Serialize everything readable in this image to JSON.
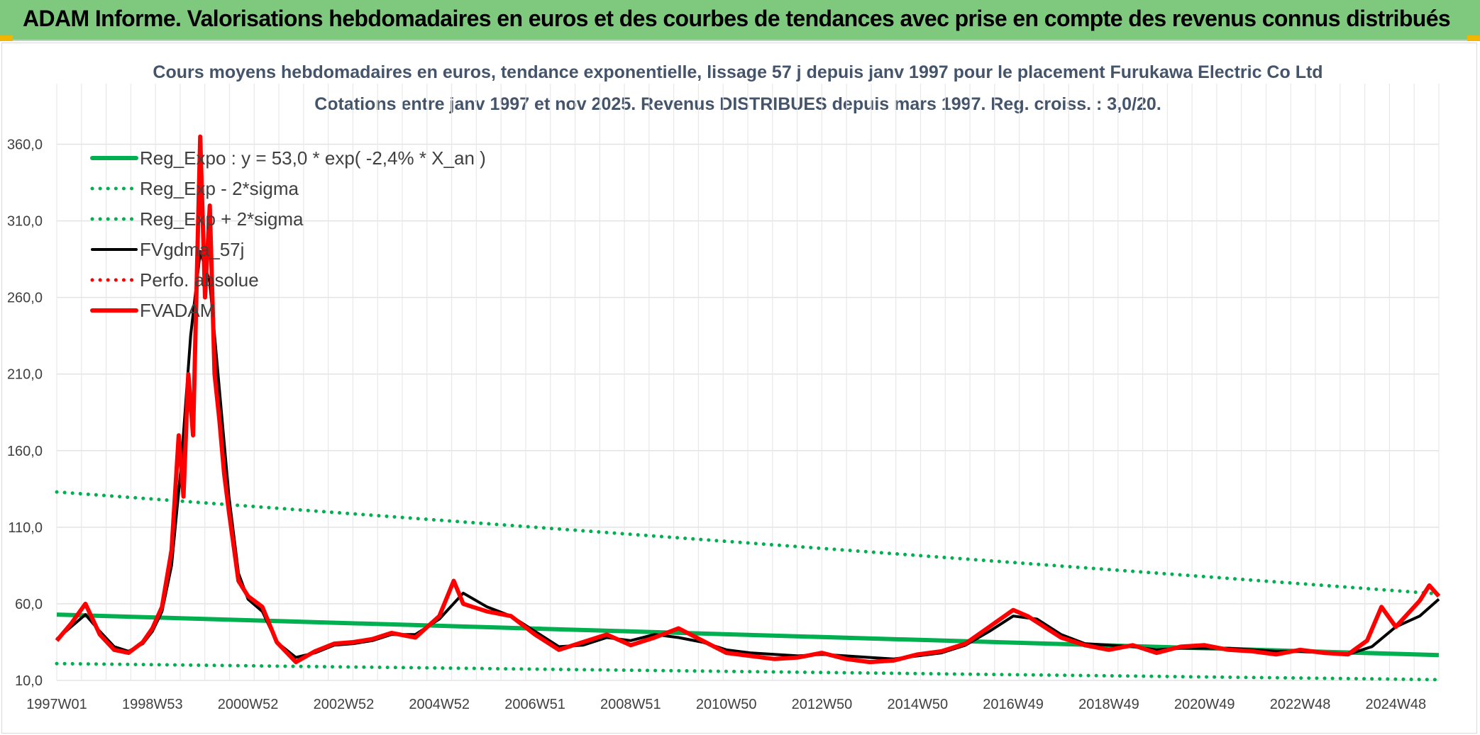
{
  "banner": {
    "title": "ADAM Informe. Valorisations hebdomadaires en euros et des courbes de tendances avec prise en compte des revenus connus distribués",
    "color": "#7ec97e"
  },
  "chart_data": {
    "type": "line",
    "title_line1": "Cours moyens hebdomadaires en euros, tendance exponentielle, lissage 57 j depuis janv 1997 pour le placement Furukawa Electric Co Ltd",
    "title_line2": "Cotations entre janv 1997 et nov 2025. Revenus DISTRIBUES depuis mars 1997. Reg. croiss. : 3,0/20.",
    "x_labels": [
      "1997W01",
      "1998W53",
      "2000W52",
      "2002W52",
      "2004W52",
      "2006W51",
      "2008W51",
      "2010W50",
      "2012W50",
      "2014W50",
      "2016W49",
      "2018W49",
      "2020W49",
      "2022W48",
      "2024W48"
    ],
    "x_range": [
      1997.0,
      2025.9
    ],
    "y_ticks": [
      "10,0",
      "60,0",
      "110,0",
      "160,0",
      "210,0",
      "260,0",
      "310,0",
      "360,0"
    ],
    "ylim": [
      10,
      360
    ],
    "grid": true,
    "legend_position": "top-left (inside plot)",
    "series": [
      {
        "name": "Reg_Expo : y = 53,0 * exp( -2,4% *  X_an )",
        "color": "#00b050",
        "style": "solid-thick",
        "x": [
          1997.0,
          2025.9
        ],
        "values": [
          53.0,
          26.5
        ]
      },
      {
        "name": "Reg_Exp - 2*sigma",
        "color": "#00b050",
        "style": "dotted",
        "x": [
          1997.0,
          2025.9
        ],
        "values": [
          21.0,
          10.5
        ]
      },
      {
        "name": "Reg_Exp + 2*sigma",
        "color": "#00b050",
        "style": "dotted",
        "x": [
          1997.0,
          2025.9
        ],
        "values": [
          133.0,
          66.5
        ]
      },
      {
        "name": "FVgdma_57j",
        "color": "#000000",
        "style": "solid",
        "x": [
          1997.0,
          1997.3,
          1997.6,
          1997.9,
          1998.2,
          1998.5,
          1998.8,
          1999.0,
          1999.2,
          1999.4,
          1999.6,
          1999.8,
          2000.0,
          2000.2,
          2000.4,
          2000.6,
          2000.8,
          2001.0,
          2001.3,
          2001.6,
          2002.0,
          2002.4,
          2002.8,
          2003.2,
          2003.6,
          2004.0,
          2004.5,
          2005.0,
          2005.5,
          2006.0,
          2006.5,
          2007.0,
          2007.5,
          2008.0,
          2008.5,
          2009.0,
          2009.5,
          2010.0,
          2010.5,
          2011.0,
          2011.5,
          2012.0,
          2012.5,
          2013.0,
          2013.5,
          2014.0,
          2014.5,
          2015.0,
          2015.5,
          2016.0,
          2016.5,
          2017.0,
          2017.5,
          2018.0,
          2018.5,
          2019.0,
          2019.5,
          2020.0,
          2020.5,
          2021.0,
          2021.5,
          2022.0,
          2022.5,
          2023.0,
          2023.5,
          2024.0,
          2024.5,
          2025.0,
          2025.5,
          2025.9
        ],
        "values": [
          37,
          45,
          53,
          42,
          32,
          29,
          34,
          42,
          55,
          85,
          150,
          235,
          290,
          270,
          200,
          130,
          80,
          63,
          55,
          35,
          25,
          28,
          33,
          34,
          36,
          40,
          40,
          50,
          67,
          58,
          52,
          42,
          32,
          33,
          38,
          36,
          40,
          38,
          35,
          30,
          28,
          27,
          26,
          27,
          26,
          25,
          24,
          26,
          28,
          33,
          42,
          52,
          50,
          40,
          34,
          33,
          32,
          30,
          31,
          31,
          31,
          30,
          29,
          29,
          28,
          27,
          32,
          45,
          52,
          63
        ]
      },
      {
        "name": "Perfo. absolue",
        "color": "#ff0000",
        "style": "dotted",
        "x": [],
        "values": []
      },
      {
        "name": "FVADAM",
        "color": "#ff0000",
        "style": "solid-thick",
        "x": [
          1997.0,
          1997.3,
          1997.6,
          1997.9,
          1998.2,
          1998.5,
          1998.8,
          1999.0,
          1999.2,
          1999.4,
          1999.55,
          1999.65,
          1999.75,
          1999.85,
          1999.95,
          2000.0,
          2000.1,
          2000.2,
          2000.3,
          2000.4,
          2000.5,
          2000.6,
          2000.8,
          2001.0,
          2001.3,
          2001.6,
          2002.0,
          2002.4,
          2002.8,
          2003.2,
          2003.6,
          2004.0,
          2004.5,
          2005.0,
          2005.3,
          2005.5,
          2005.7,
          2006.0,
          2006.5,
          2007.0,
          2007.5,
          2008.0,
          2008.5,
          2009.0,
          2009.5,
          2010.0,
          2010.5,
          2011.0,
          2011.5,
          2012.0,
          2012.5,
          2013.0,
          2013.5,
          2014.0,
          2014.5,
          2015.0,
          2015.5,
          2016.0,
          2016.5,
          2017.0,
          2017.3,
          2017.5,
          2018.0,
          2018.5,
          2019.0,
          2019.5,
          2020.0,
          2020.5,
          2021.0,
          2021.5,
          2022.0,
          2022.5,
          2023.0,
          2023.5,
          2024.0,
          2024.4,
          2024.7,
          2025.0,
          2025.5,
          2025.7,
          2025.9
        ],
        "values": [
          36,
          47,
          60,
          40,
          30,
          28,
          35,
          44,
          58,
          95,
          170,
          130,
          210,
          170,
          300,
          365,
          260,
          320,
          210,
          180,
          145,
          120,
          75,
          65,
          58,
          35,
          22,
          29,
          34,
          35,
          37,
          41,
          38,
          52,
          75,
          60,
          58,
          55,
          52,
          40,
          30,
          35,
          40,
          33,
          38,
          44,
          36,
          28,
          26,
          24,
          25,
          28,
          24,
          22,
          23,
          27,
          29,
          34,
          45,
          56,
          52,
          48,
          38,
          33,
          30,
          33,
          28,
          32,
          33,
          30,
          29,
          27,
          30,
          28,
          27,
          36,
          58,
          45,
          62,
          72,
          65
        ]
      }
    ]
  }
}
